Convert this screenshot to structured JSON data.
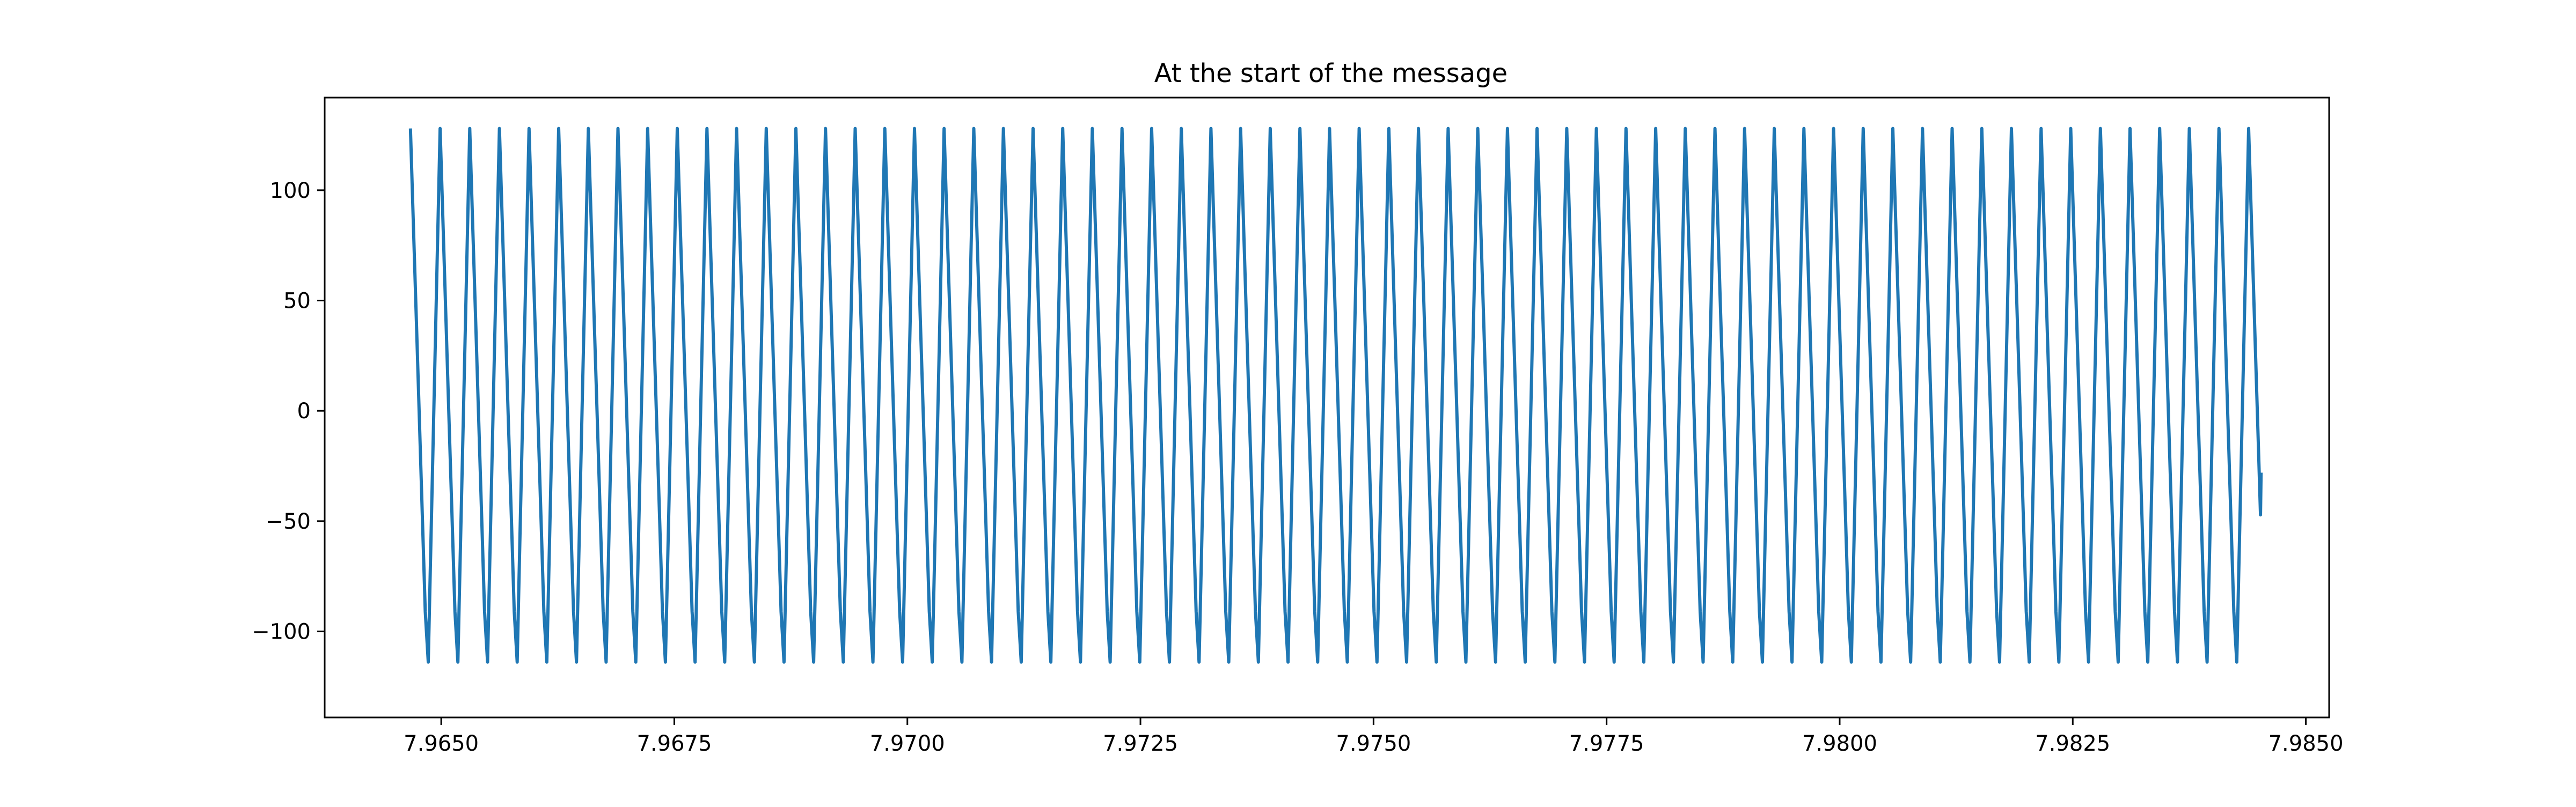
{
  "chart_data": {
    "type": "line",
    "title": "At the start of the message",
    "xlabel": "",
    "ylabel": "",
    "xlim": [
      7.96375,
      7.98525
    ],
    "ylim": [
      -139,
      142
    ],
    "x_ticks": [
      7.965,
      7.9675,
      7.97,
      7.9725,
      7.975,
      7.9775,
      7.98,
      7.9825,
      7.985
    ],
    "x_tick_labels": [
      "7.9650",
      "7.9675",
      "7.9700",
      "7.9725",
      "7.9750",
      "7.9775",
      "7.9800",
      "7.9825",
      "7.9850"
    ],
    "y_ticks": [
      -100,
      -50,
      0,
      50,
      100
    ],
    "y_tick_labels": [
      "−100",
      "−50",
      "0",
      "50",
      "100"
    ],
    "grid": false,
    "legend": "none",
    "line_color": "#1f77b4",
    "series": [
      {
        "x_start": 7.96467,
        "x_end": 7.98452,
        "y_start": 128,
        "y_end": -28,
        "peak": 128,
        "trough": -126,
        "cycles": 62,
        "waveform": "sawtooth"
      }
    ]
  }
}
